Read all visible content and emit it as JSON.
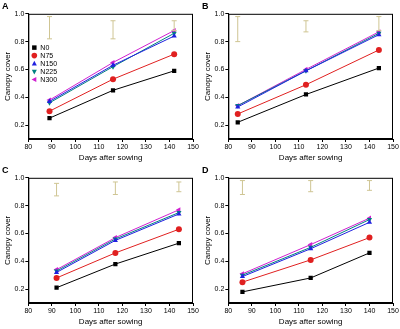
{
  "chart_data": [
    {
      "type": "line",
      "title": "A",
      "x_label": "Days after sowing",
      "y_label": "Canopy cover",
      "x": [
        89,
        116,
        142
      ],
      "series": [
        {
          "name": "N0",
          "color": "#000000",
          "marker": "square",
          "values": [
            0.25,
            0.45,
            0.59
          ]
        },
        {
          "name": "N75",
          "color": "#e02020",
          "marker": "circle",
          "values": [
            0.3,
            0.53,
            0.71
          ]
        },
        {
          "name": "N150",
          "color": "#2020e0",
          "marker": "triangle",
          "values": [
            0.37,
            0.63,
            0.84
          ]
        },
        {
          "name": "N225",
          "color": "#008080",
          "marker": "triangle_down",
          "values": [
            0.36,
            0.62,
            0.86
          ]
        },
        {
          "name": "N300",
          "color": "#d020d0",
          "marker": "triangle_left",
          "values": [
            0.38,
            0.65,
            0.88
          ]
        }
      ],
      "error_bars": {
        "x": [
          89,
          116,
          142
        ],
        "low": [
          0.82,
          0.82,
          0.88
        ],
        "high": [
          0.98,
          0.95,
          0.95
        ]
      },
      "xlim": [
        80,
        150
      ],
      "xticks": [
        80,
        90,
        100,
        110,
        120,
        130,
        140,
        150
      ],
      "ylim": [
        0.1,
        1
      ],
      "yticks": [
        0.2,
        0.4,
        0.6,
        0.8,
        {
          "value": 1,
          "label": "1.0"
        }
      ],
      "grid": false,
      "legend": "left"
    },
    {
      "type": "line",
      "title": "B",
      "x_label": "Days after sowing",
      "y_label": "Canopy cover",
      "x": [
        84,
        113,
        144
      ],
      "series": [
        {
          "name": "N0",
          "color": "#000000",
          "marker": "square",
          "values": [
            0.22,
            0.42,
            0.61
          ]
        },
        {
          "name": "N75",
          "color": "#e02020",
          "marker": "circle",
          "values": [
            0.28,
            0.49,
            0.74
          ]
        },
        {
          "name": "N150",
          "color": "#2020e0",
          "marker": "triangle",
          "values": [
            0.33,
            0.59,
            0.85
          ]
        },
        {
          "name": "N225",
          "color": "#008080",
          "marker": "triangle_down",
          "values": [
            0.34,
            0.59,
            0.86
          ]
        },
        {
          "name": "N300",
          "color": "#d020d0",
          "marker": "triangle_left",
          "values": [
            0.34,
            0.6,
            0.87
          ]
        }
      ],
      "error_bars": {
        "x": [
          84,
          113,
          144
        ],
        "low": [
          0.8,
          0.87,
          0.88
        ],
        "high": [
          0.98,
          0.95,
          0.98
        ]
      },
      "xlim": [
        80,
        150
      ],
      "xticks": [
        80,
        90,
        100,
        110,
        120,
        130,
        140,
        150
      ],
      "ylim": [
        0.1,
        1
      ],
      "yticks": [
        0.2,
        0.4,
        0.6,
        0.8,
        {
          "value": 1,
          "label": "1.0"
        }
      ],
      "grid": false
    },
    {
      "type": "line",
      "title": "C",
      "x_label": "Days after sowing",
      "y_label": "Canopy cover",
      "x": [
        92,
        117,
        144
      ],
      "series": [
        {
          "name": "N0",
          "color": "#000000",
          "marker": "square",
          "values": [
            0.21,
            0.38,
            0.53
          ]
        },
        {
          "name": "N75",
          "color": "#e02020",
          "marker": "circle",
          "values": [
            0.28,
            0.46,
            0.63
          ]
        },
        {
          "name": "N150",
          "color": "#2020e0",
          "marker": "triangle",
          "values": [
            0.32,
            0.55,
            0.74
          ]
        },
        {
          "name": "N225",
          "color": "#008080",
          "marker": "triangle_down",
          "values": [
            0.33,
            0.56,
            0.75
          ]
        },
        {
          "name": "N300",
          "color": "#d020d0",
          "marker": "triangle_left",
          "values": [
            0.34,
            0.57,
            0.77
          ]
        }
      ],
      "error_bars": {
        "x": [
          92,
          117,
          144
        ],
        "low": [
          0.87,
          0.88,
          0.9
        ],
        "high": [
          0.96,
          0.97,
          0.97
        ]
      },
      "xlim": [
        80,
        150
      ],
      "xticks": [
        80,
        90,
        100,
        110,
        120,
        130,
        140,
        150
      ],
      "ylim": [
        0.1,
        1
      ],
      "yticks": [
        0.2,
        0.4,
        0.6,
        0.8,
        {
          "value": 1,
          "label": "1.0"
        }
      ],
      "grid": false
    },
    {
      "type": "line",
      "title": "D",
      "x_label": "Days after sowing",
      "y_label": "Canopy cover",
      "x": [
        86,
        115,
        140
      ],
      "series": [
        {
          "name": "N0",
          "color": "#000000",
          "marker": "square",
          "values": [
            0.18,
            0.28,
            0.46
          ]
        },
        {
          "name": "N75",
          "color": "#e02020",
          "marker": "circle",
          "values": [
            0.25,
            0.41,
            0.57
          ]
        },
        {
          "name": "N150",
          "color": "#2020e0",
          "marker": "triangle",
          "values": [
            0.29,
            0.49,
            0.68
          ]
        },
        {
          "name": "N225",
          "color": "#008080",
          "marker": "triangle_down",
          "values": [
            0.3,
            0.5,
            0.7
          ]
        },
        {
          "name": "N300",
          "color": "#d020d0",
          "marker": "triangle_left",
          "values": [
            0.31,
            0.52,
            0.71
          ]
        }
      ],
      "error_bars": {
        "x": [
          86,
          115,
          140
        ],
        "low": [
          0.88,
          0.9,
          0.91
        ],
        "high": [
          0.98,
          0.98,
          0.98
        ]
      },
      "xlim": [
        80,
        150
      ],
      "xticks": [
        80,
        90,
        100,
        110,
        120,
        130,
        140,
        150
      ],
      "ylim": [
        0.1,
        1
      ],
      "yticks": [
        0.2,
        0.4,
        0.6,
        0.8,
        {
          "value": 1,
          "label": "1.0"
        }
      ],
      "grid": false
    }
  ]
}
